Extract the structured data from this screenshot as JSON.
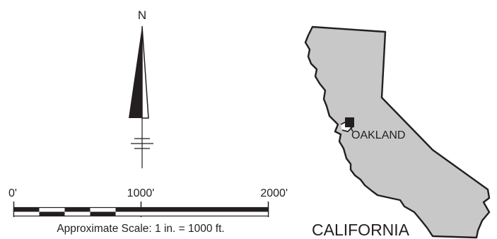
{
  "north_arrow": {
    "label": "N"
  },
  "scale_bar": {
    "ticks": [
      "0'",
      "1000'",
      "2000'"
    ],
    "caption": "Approximate Scale: 1 in. = 1000 ft."
  },
  "state_map": {
    "state_label": "CALIFORNIA",
    "city_label": "OAKLAND"
  },
  "colors": {
    "ink": "#231f20",
    "state_fill": "#c8c8c8",
    "paper": "#ffffff"
  }
}
